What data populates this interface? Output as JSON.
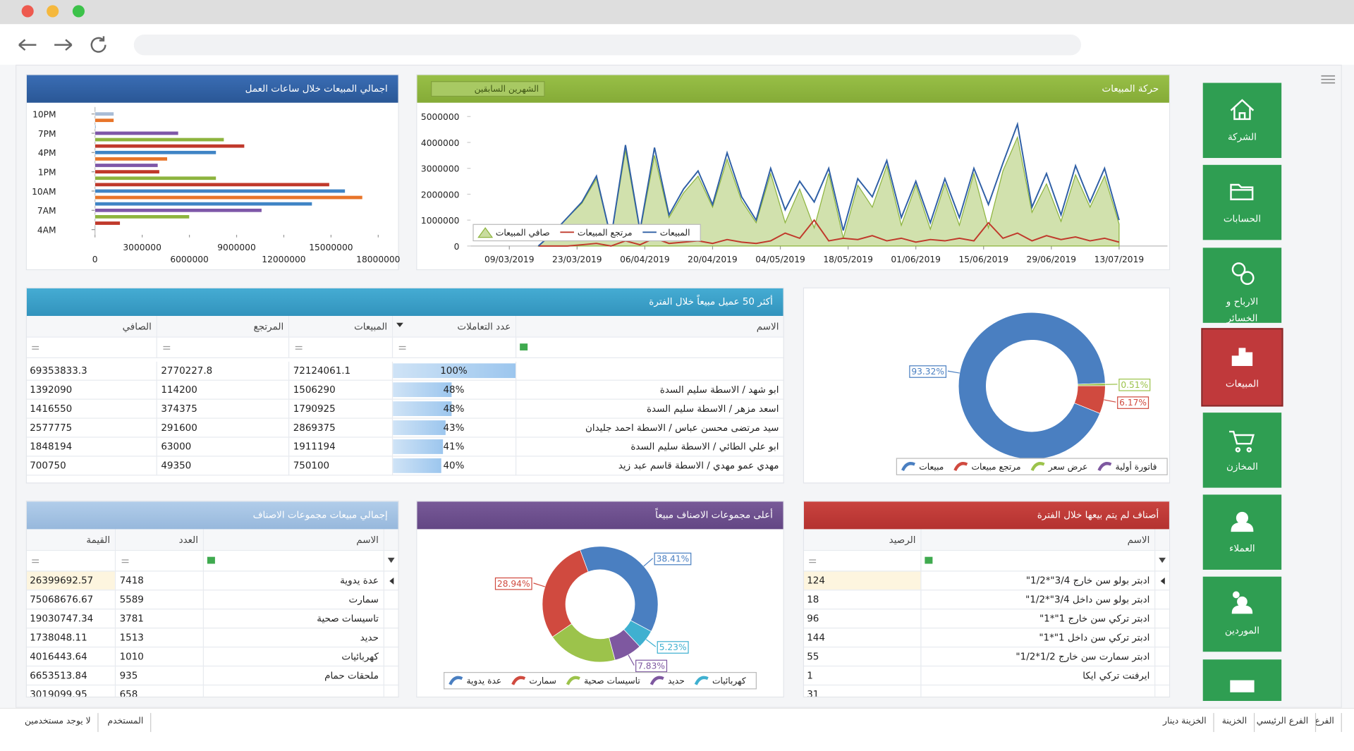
{
  "sidebar": {
    "items": [
      "الشركة",
      "الحسابات",
      "الارباح و الخسائر",
      "المبيعات",
      "المخازن",
      "العملاء",
      "الموردين",
      "النقدية"
    ],
    "active": 3
  },
  "chart_data": [
    {
      "type": "bar",
      "orientation": "horizontal",
      "title": "اجمالي المبيعات خلال ساعات العمل",
      "categories": [
        "4AM",
        null,
        null,
        "7AM",
        null,
        null,
        "10AM",
        null,
        null,
        "1PM",
        null,
        null,
        "4PM",
        null,
        null,
        "7PM",
        null,
        null,
        "10PM"
      ],
      "values": [
        0,
        1600000,
        6000000,
        10600000,
        13800000,
        17000000,
        15900000,
        14900000,
        7700000,
        4100000,
        4000000,
        4600000,
        7700000,
        9500000,
        8200000,
        5300000,
        50000,
        1200000,
        1200000
      ],
      "colors": [
        "#c0392b",
        "#c0392b",
        "#8db43e",
        "#7e57a8",
        "#3f84c5",
        "#e8752a",
        "#3f84c5",
        "#c0392b",
        "#8db43e",
        "#c0392b",
        "#7e57a8",
        "#e8752a",
        "#3f84c5",
        "#c0392b",
        "#8db43e",
        "#7e57a8",
        "#3f84c5",
        "#e8752a",
        "#a9bcd6"
      ],
      "xlim": [
        0,
        18000000
      ],
      "xticks": [
        0,
        3000000,
        6000000,
        9000000,
        12000000,
        15000000,
        18000000
      ],
      "grid": false
    },
    {
      "type": "line",
      "title": "حركة المبيعات",
      "period": "الشهرين السابقين",
      "x": [
        "15/03/2019",
        "18/03/2019",
        "21/03/2019",
        "24/03/2019",
        "27/03/2019",
        "30/03/2019",
        "02/04/2019",
        "05/04/2019",
        "08/04/2019",
        "11/04/2019",
        "14/04/2019",
        "17/04/2019",
        "20/04/2019",
        "23/04/2019",
        "26/04/2019",
        "29/04/2019",
        "02/05/2019",
        "05/05/2019",
        "08/05/2019",
        "11/05/2019",
        "14/05/2019",
        "17/05/2019",
        "20/05/2019",
        "23/05/2019",
        "26/05/2019",
        "29/05/2019",
        "01/06/2019",
        "04/06/2019",
        "07/06/2019",
        "10/06/2019",
        "13/06/2019",
        "16/06/2019",
        "19/06/2019",
        "22/06/2019",
        "25/06/2019",
        "28/06/2019",
        "01/07/2019",
        "04/07/2019",
        "07/07/2019",
        "10/07/2019",
        "13/07/2019"
      ],
      "series": [
        {
          "name": "صافي المبيعات",
          "color": "#8db43e",
          "area": true,
          "values": [
            0,
            500000,
            1100000,
            1650000,
            2600000,
            300000,
            3700000,
            550000,
            3500000,
            1100000,
            2050000,
            2700000,
            1500000,
            3350000,
            1750000,
            900000,
            2800000,
            900000,
            2200000,
            700000,
            2800000,
            300000,
            2350000,
            1500000,
            3100000,
            800000,
            2350000,
            650000,
            2400000,
            800000,
            2800000,
            700000,
            2900000,
            4200000,
            1300000,
            2400000,
            950000,
            2750000,
            1500000,
            2700000,
            850000
          ]
        },
        {
          "name": "مرتجع المبيعات",
          "color": "#c0392b",
          "values": [
            0,
            0,
            0,
            50000,
            100000,
            0,
            200000,
            50000,
            300000,
            100000,
            150000,
            200000,
            100000,
            250000,
            150000,
            100000,
            200000,
            500000,
            300000,
            1000000,
            200000,
            300000,
            250000,
            400000,
            200000,
            300000,
            150000,
            250000,
            200000,
            300000,
            200000,
            900000,
            300000,
            500000,
            200000,
            400000,
            250000,
            350000,
            200000,
            300000,
            150000
          ]
        },
        {
          "name": "المبيعات",
          "color": "#2f5fa5",
          "values": [
            0,
            500000,
            1100000,
            1700000,
            2700000,
            300000,
            3900000,
            600000,
            3800000,
            1200000,
            2200000,
            2900000,
            1600000,
            3600000,
            1900000,
            1000000,
            3000000,
            1400000,
            2500000,
            1700000,
            3000000,
            600000,
            2600000,
            1900000,
            3300000,
            1100000,
            2500000,
            900000,
            2600000,
            1100000,
            3000000,
            1600000,
            3200000,
            4700000,
            1500000,
            2800000,
            1200000,
            3100000,
            1700000,
            3000000,
            1000000
          ]
        }
      ],
      "xlim": [
        "01/03/2019",
        "23/07/2019"
      ],
      "xticks": [
        "09/03/2019",
        "23/03/2019",
        "06/04/2019",
        "20/04/2019",
        "04/05/2019",
        "18/05/2019",
        "01/06/2019",
        "15/06/2019",
        "29/06/2019",
        "13/07/2019"
      ],
      "ylim": [
        0,
        5500000
      ],
      "yticks": [
        0,
        1000000,
        2000000,
        3000000,
        4000000,
        5000000
      ],
      "grid": false,
      "legend": "bottom-left"
    },
    {
      "type": "pie",
      "categories": [
        "مبيعات",
        "مرتجع مبيعات",
        "عرض سعر",
        "فاتورة أولية"
      ],
      "values": [
        93.32,
        6.17,
        0.51,
        0
      ],
      "value_labels": [
        "93.32%",
        "6.17%",
        "0.51%",
        null
      ],
      "colors": [
        "#4a7fc1",
        "#d04a3f",
        "#9cc34b",
        "#7e58a0"
      ]
    },
    {
      "type": "pie",
      "title": "أعلى مجموعات الاصناف مبيعاً",
      "categories": [
        "عدة يدوية",
        "سمارت",
        "تاسيسات صحية",
        "حديد",
        "كهربائيات"
      ],
      "values": [
        38.41,
        28.94,
        19.59,
        7.83,
        5.23
      ],
      "value_labels": [
        "38.41%",
        "28.94%",
        null,
        "7.83%",
        "5.23%"
      ],
      "colors": [
        "#4a7fc1",
        "#d04a3f",
        "#9cc34b",
        "#7e58a0",
        "#3fb0d0"
      ]
    }
  ],
  "customers": {
    "title": "أكثر 50 عميل مبيعاً خلال الفترة",
    "columns": [
      "الاسم",
      "عدد التعاملات",
      "المبيعات",
      "المرتجع",
      "الصافي"
    ],
    "rows": [
      [
        null,
        {
          "value": 100,
          "label": "100%"
        },
        72124061.1,
        2770227.8,
        69353833.3
      ],
      [
        "ابو شهد / الاسطة سليم السدة",
        {
          "value": 48,
          "label": "48%"
        },
        1506290,
        114200,
        1392090
      ],
      [
        "اسعد مزهر / الاسطة سليم السدة",
        {
          "value": 48,
          "label": "48%"
        },
        1790925,
        374375,
        1416550
      ],
      [
        "سيد مرتضى محسن عباس / الاسطة احمد جليدان",
        {
          "value": 43,
          "label": "43%"
        },
        2869375,
        291600,
        2577775
      ],
      [
        "ابو علي الطائي / الاسطة سليم السدة",
        {
          "value": 41,
          "label": "41%"
        },
        1911194,
        63000,
        1848194
      ],
      [
        "مهدي عمو مهدي / الاسطة قاسم عبد زيد",
        {
          "value": 40,
          "label": "40%"
        },
        750100,
        49350,
        700750
      ]
    ]
  },
  "groups_table": {
    "title": "إجمالي مبيعات مجموعات الاصناف",
    "columns": [
      "الاسم",
      "العدد",
      "القيمة"
    ],
    "rows": [
      [
        "عدة يدوية",
        7418,
        26399692.57
      ],
      [
        "سمارت",
        5589,
        75068676.67
      ],
      [
        "تاسيسات صحية",
        3781,
        19030747.34
      ],
      [
        "حديد",
        1513,
        1738048.11
      ],
      [
        "كهربائيات",
        1010,
        4016443.64
      ],
      [
        "ملحقات حمام",
        935,
        6653513.84
      ],
      [
        null,
        658,
        3019099.95
      ]
    ]
  },
  "unsold": {
    "title": "أصناف لم يتم بيعها خلال الفترة",
    "columns": [
      "الاسم",
      "الرصيد"
    ],
    "rows": [
      [
        "ادبتر بولو سن خارج 3/4\"*1/2\"",
        124
      ],
      [
        "ادبتر بولو سن داخل 3/4\"*1/2\"",
        18
      ],
      [
        "ادبتر تركي سن خارج 1\"*1\"",
        96
      ],
      [
        "ادبتر تركي سن داخل 1\"*1\"",
        144
      ],
      [
        "ادبتر سمارت سن خارج 1/2*1/2\"",
        55
      ],
      [
        "ايرفنت تركي ايكا",
        1
      ],
      [
        null,
        31
      ]
    ]
  },
  "status_bar": {
    "right": [
      "الفرع",
      "الفرع الرئيسي",
      "الخزينة",
      "الخزينة دينار"
    ],
    "left": [
      "المستخدم",
      "لا يوجد مستخدمين"
    ]
  }
}
